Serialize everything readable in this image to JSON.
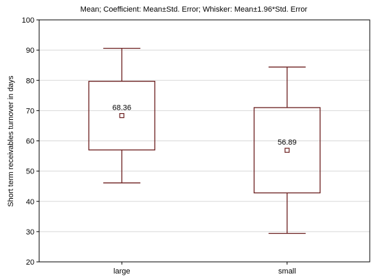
{
  "chart_data": {
    "type": "boxplot",
    "title": "Mean; Coefficient: Mean±Std. Error; Whisker: Mean±1.96*Std. Error",
    "xlabel": "",
    "ylabel": "Short term receivables turnover in days",
    "ylim": [
      20,
      100
    ],
    "yticks": [
      "20",
      "30",
      "40",
      "50",
      "60",
      "70",
      "80",
      "90",
      "100"
    ],
    "grid": true,
    "legend": "none",
    "categories": [
      "large",
      "small"
    ],
    "boxes": [
      {
        "category": "large",
        "mean": 68.36,
        "mean_label": "68.36",
        "box_low": 57.0,
        "box_high": 79.7,
        "whisker_low": 46.1,
        "whisker_high": 90.6
      },
      {
        "category": "small",
        "mean": 56.89,
        "mean_label": "56.89",
        "box_low": 42.8,
        "box_high": 71.0,
        "whisker_low": 29.4,
        "whisker_high": 84.4
      }
    ],
    "colors": {
      "box": "#6b1e1e",
      "axis": "#000000",
      "grid": "#d8d8d8",
      "background": "#ffffff"
    }
  }
}
